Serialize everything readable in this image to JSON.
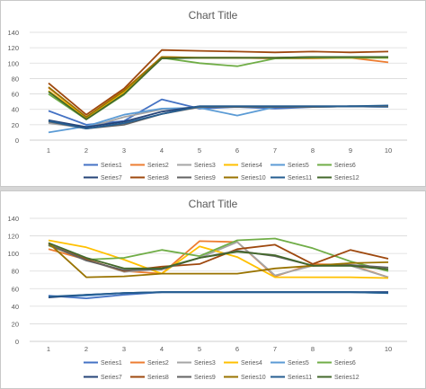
{
  "chart_data": [
    {
      "type": "line",
      "title": "Chart Title",
      "categories": [
        "1",
        "2",
        "3",
        "4",
        "5",
        "6",
        "7",
        "8",
        "9",
        "10"
      ],
      "ylim": [
        0,
        140
      ],
      "yticks": [
        0,
        20,
        40,
        60,
        80,
        100,
        120,
        140
      ],
      "grid": true,
      "legend_position": "bottom",
      "series": [
        {
          "name": "Series1",
          "color": "#4472c4",
          "values": [
            38,
            20,
            25,
            53,
            41,
            43,
            41,
            43,
            44,
            43
          ]
        },
        {
          "name": "Series2",
          "color": "#ed7d31",
          "values": [
            68,
            30,
            65,
            108,
            107,
            107,
            106,
            106,
            107,
            101
          ]
        },
        {
          "name": "Series3",
          "color": "#a5a5a5",
          "values": [
            22,
            16,
            30,
            40,
            43,
            43,
            43,
            43,
            44,
            44
          ]
        },
        {
          "name": "Series4",
          "color": "#ffc000",
          "values": [
            64,
            29,
            62,
            107,
            107,
            107,
            107,
            107,
            107,
            107
          ]
        },
        {
          "name": "Series5",
          "color": "#5b9bd5",
          "values": [
            10,
            18,
            33,
            41,
            42,
            32,
            43,
            43,
            44,
            43
          ]
        },
        {
          "name": "Series6",
          "color": "#70ad47",
          "values": [
            60,
            27,
            59,
            107,
            100,
            96,
            106,
            107,
            107,
            107
          ]
        },
        {
          "name": "Series7",
          "color": "#264478",
          "values": [
            26,
            17,
            24,
            37,
            44,
            44,
            44,
            44,
            44,
            44
          ]
        },
        {
          "name": "Series8",
          "color": "#9e480e",
          "values": [
            74,
            33,
            67,
            117,
            116,
            115,
            114,
            115,
            114,
            115
          ]
        },
        {
          "name": "Series9",
          "color": "#636363",
          "values": [
            24,
            15,
            20,
            34,
            43,
            43,
            43,
            43,
            44,
            44
          ]
        },
        {
          "name": "Series10",
          "color": "#997300",
          "values": [
            69,
            30,
            64,
            108,
            107,
            107,
            107,
            108,
            108,
            108
          ]
        },
        {
          "name": "Series11",
          "color": "#255e91",
          "values": [
            25,
            15,
            22,
            34,
            44,
            44,
            44,
            44,
            44,
            45
          ]
        },
        {
          "name": "Series12",
          "color": "#43682b",
          "values": [
            63,
            27,
            60,
            106,
            107,
            107,
            107,
            108,
            108,
            108
          ]
        }
      ]
    },
    {
      "type": "line",
      "title": "Chart Title",
      "categories": [
        "1",
        "2",
        "3",
        "4",
        "5",
        "6",
        "7",
        "8",
        "9",
        "10"
      ],
      "ylim": [
        0,
        140
      ],
      "yticks": [
        0,
        20,
        40,
        60,
        80,
        100,
        120,
        140
      ],
      "grid": true,
      "legend_position": "bottom",
      "series": [
        {
          "name": "Series1",
          "color": "#4472c4",
          "values": [
            52,
            49,
            53,
            56,
            56,
            56,
            56,
            56,
            56,
            56
          ]
        },
        {
          "name": "Series2",
          "color": "#ed7d31",
          "values": [
            105,
            93,
            80,
            77,
            114,
            113,
            74,
            88,
            87,
            73
          ]
        },
        {
          "name": "Series3",
          "color": "#a5a5a5",
          "values": [
            110,
            93,
            79,
            83,
            95,
            113,
            75,
            86,
            86,
            73
          ]
        },
        {
          "name": "Series4",
          "color": "#ffc000",
          "values": [
            115,
            107,
            93,
            77,
            108,
            96,
            73,
            73,
            73,
            72
          ]
        },
        {
          "name": "Series5",
          "color": "#5b9bd5",
          "values": [
            51,
            52,
            55,
            56,
            56,
            56,
            56,
            56,
            56,
            55
          ]
        },
        {
          "name": "Series6",
          "color": "#70ad47",
          "values": [
            109,
            93,
            95,
            104,
            97,
            115,
            117,
            106,
            91,
            80
          ]
        },
        {
          "name": "Series7",
          "color": "#264478",
          "values": [
            50,
            53,
            55,
            56,
            56,
            56,
            56,
            56,
            56,
            56
          ]
        },
        {
          "name": "Series8",
          "color": "#9e480e",
          "values": [
            110,
            93,
            80,
            85,
            88,
            105,
            110,
            88,
            104,
            94
          ]
        },
        {
          "name": "Series9",
          "color": "#636363",
          "values": [
            110,
            92,
            81,
            82,
            95,
            103,
            97,
            86,
            87,
            84
          ]
        },
        {
          "name": "Series10",
          "color": "#997300",
          "values": [
            112,
            73,
            74,
            77,
            77,
            77,
            83,
            86,
            89,
            90
          ]
        },
        {
          "name": "Series11",
          "color": "#255e91",
          "values": [
            51,
            53,
            55,
            56,
            56,
            56,
            56,
            56,
            56,
            55
          ]
        },
        {
          "name": "Series12",
          "color": "#43682b",
          "values": [
            112,
            95,
            83,
            83,
            95,
            102,
            98,
            86,
            86,
            82
          ]
        }
      ]
    }
  ]
}
